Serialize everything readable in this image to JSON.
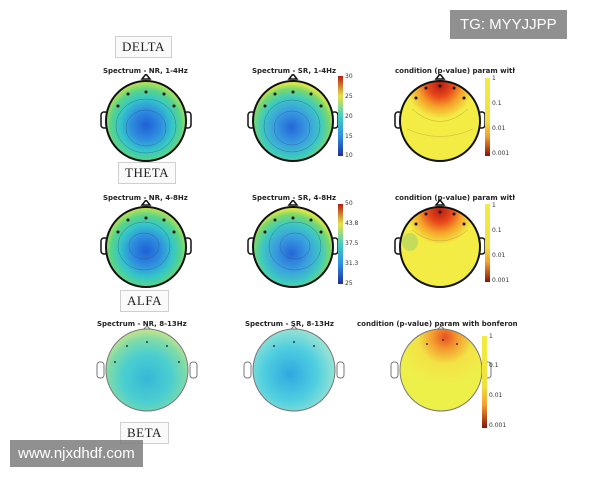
{
  "bands": [
    {
      "label": "DELTA",
      "nr_title": "Spectrum - NR, 1-4Hz",
      "sr_title": "Spectrum - SR, 1-4Hz",
      "sr_ticks": [
        "30",
        "25",
        "20",
        "15",
        "10"
      ],
      "p_title": "condition (p-value) param with bonferoni",
      "p_ticks": [
        "1",
        "0.1",
        "0.01",
        "0.001"
      ]
    },
    {
      "label": "THETA",
      "nr_title": "Spectrum - NR, 4-8Hz",
      "sr_title": "Spectrum - SR, 4-8Hz",
      "sr_ticks": [
        "50",
        "43.8",
        "37.5",
        "31.3",
        "25"
      ],
      "p_title": "condition (p-value) param with bonferoni",
      "p_ticks": [
        "1",
        "0.1",
        "0.01",
        "0.001"
      ]
    },
    {
      "label": "ALFA",
      "nr_title": "Spectrum - NR, 8-13Hz",
      "sr_title": "Spectrum - SR, 8-13Hz",
      "sr_ticks": [],
      "p_title": "condition (p-value) param with bonferoni",
      "p_ticks": [
        "1",
        "0.1",
        "0.01",
        "0.001"
      ]
    }
  ],
  "next_band_label": "BETA",
  "overlays": {
    "top_right": "TG: MYYJJPP",
    "bottom_left": "www.njxdhdf.com"
  },
  "colors": {
    "spectrum_low": "#1f5fd6",
    "spectrum_mid": "#34c6c9",
    "spectrum_high": "#e9e24a",
    "pvalue_high": "#f3ec45",
    "pvalue_low": "#b61c10"
  }
}
